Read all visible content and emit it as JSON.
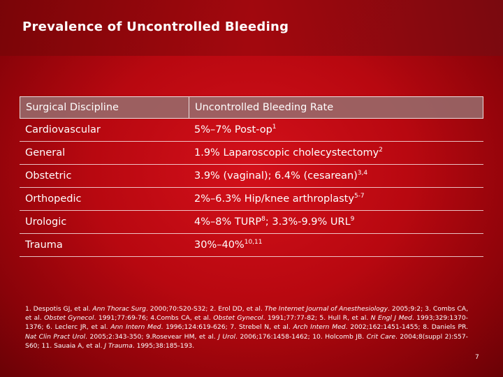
{
  "header": {
    "title": "Prevalence of Uncontrolled Bleeding"
  },
  "table": {
    "columns": [
      "Surgical Discipline",
      "Uncontrolled Bleeding Rate"
    ],
    "rows": [
      {
        "discipline": "Cardiovascular",
        "rate": [
          {
            "text": "5%–7% Post-op"
          },
          {
            "sup": "1"
          }
        ]
      },
      {
        "discipline": "General",
        "rate": [
          {
            "text": "1.9% Laparoscopic cholecystectomy"
          },
          {
            "sup": "2"
          }
        ]
      },
      {
        "discipline": "Obstetric",
        "rate": [
          {
            "text": "3.9% (vaginal); 6.4% (cesarean)"
          },
          {
            "sup": "3,4"
          }
        ]
      },
      {
        "discipline": "Orthopedic",
        "rate": [
          {
            "text": "2%–6.3% Hip/knee arthroplasty"
          },
          {
            "sup": "5-7"
          }
        ]
      },
      {
        "discipline": "Urologic",
        "rate": [
          {
            "text": "4%–8% TURP"
          },
          {
            "sup": "8"
          },
          {
            "text": "; 3.3%-9.9% URL"
          },
          {
            "sup": "9"
          }
        ]
      },
      {
        "discipline": "Trauma",
        "rate": [
          {
            "text": "30%–40%"
          },
          {
            "sup": "10,11"
          }
        ]
      }
    ]
  },
  "references": [
    {
      "text": "1. Despotis GJ, et al. "
    },
    {
      "italic": "Ann Thorac Surg"
    },
    {
      "text": ". 2000;70:S20-S32; 2. Erol DD, et al. "
    },
    {
      "italic": "The Internet Journal of Anesthesiology"
    },
    {
      "text": ". 2005;9:2; 3. Combs CA, et al. "
    },
    {
      "italic": "Obstet Gynecol"
    },
    {
      "text": ". 1991;77:69-76; 4.Combs CA, et al. "
    },
    {
      "italic": "Obstet Gynecol"
    },
    {
      "text": ". 1991;77:77-82; 5. Hull R, et al. "
    },
    {
      "italic": "N Engl J Med"
    },
    {
      "text": ". 1993;329:1370-1376; 6. Leclerc JR, et al. "
    },
    {
      "italic": "Ann Intern Med"
    },
    {
      "text": ". 1996;124:619-626; 7. Strebel N, et al. "
    },
    {
      "italic": "Arch Intern Med"
    },
    {
      "text": ". 2002;162:1451-1455; 8. Daniels PR. "
    },
    {
      "italic": "Nat Clin Pract Urol"
    },
    {
      "text": ". 2005;2:343-350; 9.Rosevear HM, et al. "
    },
    {
      "italic": "J Urol"
    },
    {
      "text": ". 2006;176:1458-1462; 10. Holcomb JB. "
    },
    {
      "italic": "Crit Care"
    },
    {
      "text": ". 2004;8(suppl 2):S57-S60; 11. Sauaia A, et al. "
    },
    {
      "italic": "J Trauma"
    },
    {
      "text": ". 1995;38:185-193."
    }
  ],
  "page_number": "7"
}
